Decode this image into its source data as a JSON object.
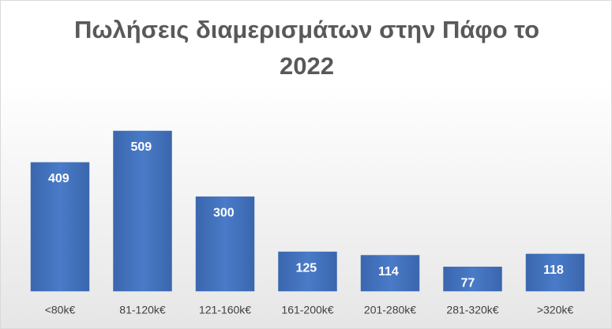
{
  "chart_data": {
    "type": "bar",
    "title": "Πωλήσεις διαμερισμάτων στην Πάφο το 2022",
    "categories": [
      "<80k€",
      "81-120k€",
      "121-160k€",
      "161-200k€",
      "201-280k€",
      "281-320k€",
      ">320k€"
    ],
    "values": [
      409,
      509,
      300,
      125,
      114,
      77,
      118
    ],
    "color": "#3f6fb8"
  }
}
